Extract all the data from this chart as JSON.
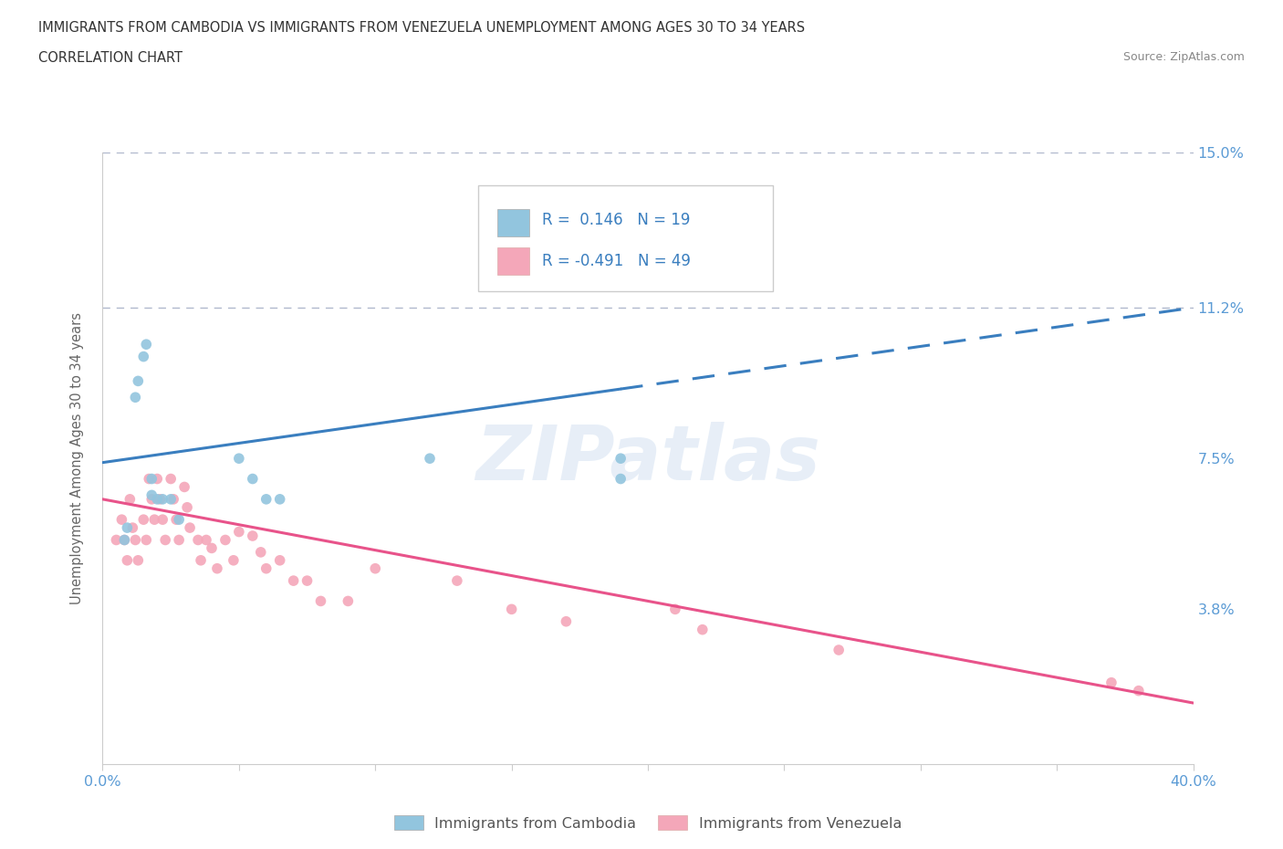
{
  "title_line1": "IMMIGRANTS FROM CAMBODIA VS IMMIGRANTS FROM VENEZUELA UNEMPLOYMENT AMONG AGES 30 TO 34 YEARS",
  "title_line2": "CORRELATION CHART",
  "source_text": "Source: ZipAtlas.com",
  "ylabel": "Unemployment Among Ages 30 to 34 years",
  "xlim": [
    0.0,
    0.4
  ],
  "ylim": [
    0.0,
    0.15
  ],
  "ytick_values": [
    0.0,
    0.038,
    0.075,
    0.112,
    0.15
  ],
  "ytick_labels": [
    "",
    "3.8%",
    "7.5%",
    "11.2%",
    "15.0%"
  ],
  "hlines": [
    0.15,
    0.112
  ],
  "cambodia_color": "#92c5de",
  "cambodia_line_color": "#3a7ebf",
  "venezuela_color": "#f4a7b9",
  "venezuela_line_color": "#e8538a",
  "cambodia_R": 0.146,
  "cambodia_N": 19,
  "venezuela_R": -0.491,
  "venezuela_N": 49,
  "legend_label_cambodia": "Immigrants from Cambodia",
  "legend_label_venezuela": "Immigrants from Venezuela",
  "watermark": "ZIPatlas",
  "background_color": "#ffffff",
  "cambodia_x": [
    0.008,
    0.009,
    0.012,
    0.013,
    0.015,
    0.016,
    0.018,
    0.018,
    0.02,
    0.022,
    0.025,
    0.028,
    0.05,
    0.055,
    0.06,
    0.065,
    0.19,
    0.19,
    0.12
  ],
  "cambodia_y": [
    0.055,
    0.058,
    0.09,
    0.094,
    0.1,
    0.103,
    0.066,
    0.07,
    0.065,
    0.065,
    0.065,
    0.06,
    0.075,
    0.07,
    0.065,
    0.065,
    0.075,
    0.07,
    0.075
  ],
  "venezuela_x": [
    0.005,
    0.007,
    0.008,
    0.009,
    0.01,
    0.011,
    0.012,
    0.013,
    0.015,
    0.016,
    0.017,
    0.018,
    0.019,
    0.02,
    0.021,
    0.022,
    0.023,
    0.025,
    0.026,
    0.027,
    0.028,
    0.03,
    0.031,
    0.032,
    0.035,
    0.036,
    0.038,
    0.04,
    0.042,
    0.045,
    0.048,
    0.05,
    0.055,
    0.058,
    0.06,
    0.065,
    0.07,
    0.075,
    0.08,
    0.09,
    0.1,
    0.13,
    0.15,
    0.17,
    0.21,
    0.22,
    0.27,
    0.37,
    0.38
  ],
  "venezuela_y": [
    0.055,
    0.06,
    0.055,
    0.05,
    0.065,
    0.058,
    0.055,
    0.05,
    0.06,
    0.055,
    0.07,
    0.065,
    0.06,
    0.07,
    0.065,
    0.06,
    0.055,
    0.07,
    0.065,
    0.06,
    0.055,
    0.068,
    0.063,
    0.058,
    0.055,
    0.05,
    0.055,
    0.053,
    0.048,
    0.055,
    0.05,
    0.057,
    0.056,
    0.052,
    0.048,
    0.05,
    0.045,
    0.045,
    0.04,
    0.04,
    0.048,
    0.045,
    0.038,
    0.035,
    0.038,
    0.033,
    0.028,
    0.02,
    0.018
  ],
  "cam_line_solid_end": 0.19,
  "ven_line_solid_end": 0.4
}
